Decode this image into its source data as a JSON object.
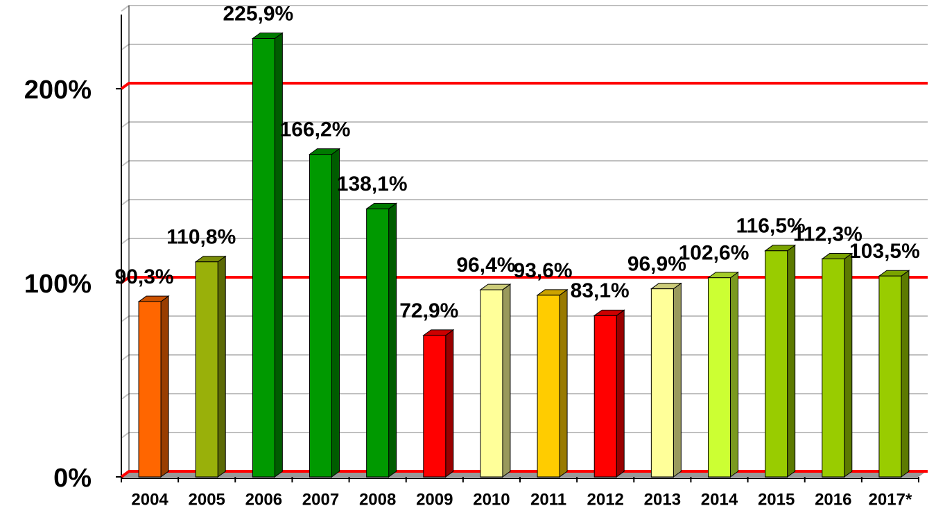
{
  "chart_data": {
    "type": "bar3d",
    "categories": [
      "2004",
      "2005",
      "2006",
      "2007",
      "2008",
      "2009",
      "2010",
      "2011",
      "2012",
      "2013",
      "2014",
      "2015",
      "2016",
      "2017*"
    ],
    "values": [
      90.3,
      110.8,
      225.9,
      166.2,
      138.1,
      72.9,
      96.4,
      93.6,
      83.1,
      96.9,
      102.6,
      116.5,
      112.3,
      103.5
    ],
    "value_labels": [
      "90,3%",
      "110,8%",
      "225,9%",
      "166,2%",
      "138,1%",
      "72,9%",
      "96,4%",
      "93,6%",
      "83,1%",
      "96,9%",
      "102,6%",
      "116,5%",
      "112,3%",
      "103,5%"
    ],
    "colors": [
      "#ff6600",
      "#99b00a",
      "#009900",
      "#009900",
      "#009900",
      "#ff0000",
      "#ffff99",
      "#ffcc00",
      "#ff0000",
      "#ffff99",
      "#ccff33",
      "#99cc00",
      "#99cc00",
      "#99cc00"
    ],
    "ylim": [
      0,
      240
    ],
    "yticks": [
      {
        "value": 0,
        "label": "0%"
      },
      {
        "value": 100,
        "label": "100%"
      },
      {
        "value": 200,
        "label": "200%"
      }
    ],
    "minor_yticks": [
      20,
      40,
      60,
      80,
      120,
      140,
      160,
      180,
      220,
      240
    ],
    "grid_color": "#ff0000",
    "minor_grid_color": "#c0c0c0",
    "grid": true
  }
}
